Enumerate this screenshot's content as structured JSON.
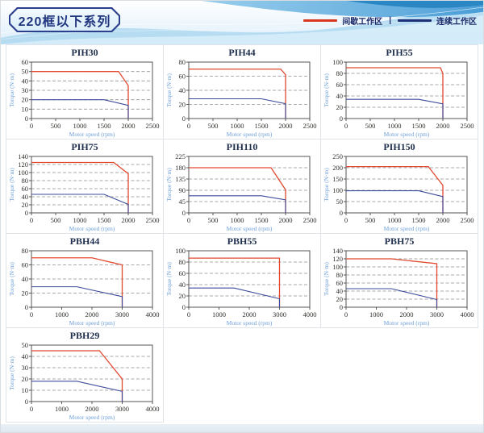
{
  "header": {
    "title": "220框以下系列",
    "legend": {
      "items": [
        {
          "label": "间歇工作区",
          "color": "#d6391f"
        },
        {
          "label": "连续工作区",
          "color": "#1d2f77"
        }
      ],
      "separator": "|"
    }
  },
  "style_colors": {
    "intermittent_line": "#e2492f",
    "continuous_line": "#3d4b9b",
    "axis_label_blue": "#6fa0d8",
    "tick_text": "#33302c",
    "plot_border": "#555555",
    "gridline": "#8f8f8f"
  },
  "chart_data": [
    {
      "type": "line",
      "title": "PIH30",
      "xlabel": "Motor speed (rpm)",
      "ylabel": "Torque (N·m)",
      "xlim": [
        0,
        2500
      ],
      "ylim": [
        0,
        60
      ],
      "xtick_step": 500,
      "ytick_step": 10,
      "grid": "dashed-horizontal",
      "legend_position": "none",
      "series": [
        {
          "name": "间歇工作区",
          "color": "#e2492f",
          "points": [
            [
              0,
              50
            ],
            [
              1800,
              50
            ],
            [
              2000,
              35
            ],
            [
              2000,
              0
            ]
          ]
        },
        {
          "name": "连续工作区",
          "color": "#3d4b9b",
          "points": [
            [
              0,
              20
            ],
            [
              1500,
              20
            ],
            [
              2000,
              14
            ],
            [
              2000,
              0
            ]
          ]
        }
      ]
    },
    {
      "type": "line",
      "title": "PIH44",
      "xlabel": "Motor speed (rpm)",
      "ylabel": "Torque (N·m)",
      "xlim": [
        0,
        2500
      ],
      "ylim": [
        0,
        80
      ],
      "xtick_step": 500,
      "ytick_step": 20,
      "grid": "dashed-horizontal",
      "legend_position": "none",
      "series": [
        {
          "name": "间歇工作区",
          "color": "#e2492f",
          "points": [
            [
              0,
              70
            ],
            [
              1900,
              70
            ],
            [
              2000,
              62
            ],
            [
              2000,
              0
            ]
          ]
        },
        {
          "name": "连续工作区",
          "color": "#3d4b9b",
          "points": [
            [
              0,
              28
            ],
            [
              1500,
              28
            ],
            [
              2000,
              21
            ],
            [
              2000,
              0
            ]
          ]
        }
      ]
    },
    {
      "type": "line",
      "title": "PIH55",
      "xlabel": "Motor speed (rpm)",
      "ylabel": "Torque (N·m)",
      "xlim": [
        0,
        2500
      ],
      "ylim": [
        0,
        100
      ],
      "xtick_step": 500,
      "ytick_step": 20,
      "grid": "dashed-horizontal",
      "legend_position": "none",
      "series": [
        {
          "name": "间歇工作区",
          "color": "#e2492f",
          "points": [
            [
              0,
              90
            ],
            [
              1950,
              90
            ],
            [
              2000,
              80
            ],
            [
              2000,
              0
            ]
          ]
        },
        {
          "name": "连续工作区",
          "color": "#3d4b9b",
          "points": [
            [
              0,
              34
            ],
            [
              1500,
              34
            ],
            [
              2000,
              26
            ],
            [
              2000,
              0
            ]
          ]
        }
      ]
    },
    {
      "type": "line",
      "title": "PIH75",
      "xlabel": "Motor speed (rpm)",
      "ylabel": "Torque (N·m)",
      "xlim": [
        0,
        2500
      ],
      "ylim": [
        0,
        140
      ],
      "xtick_step": 500,
      "ytick_step": 20,
      "grid": "dashed-horizontal",
      "legend_position": "none",
      "series": [
        {
          "name": "间歇工作区",
          "color": "#e2492f",
          "points": [
            [
              0,
              125
            ],
            [
              1700,
              125
            ],
            [
              2000,
              97
            ],
            [
              2000,
              0
            ]
          ]
        },
        {
          "name": "连续工作区",
          "color": "#3d4b9b",
          "points": [
            [
              0,
              46
            ],
            [
              1500,
              46
            ],
            [
              2000,
              21
            ],
            [
              2000,
              0
            ]
          ]
        }
      ]
    },
    {
      "type": "line",
      "title": "PIH110",
      "xlabel": "Motor speed (rpm)",
      "ylabel": "Torque (N·m)",
      "xlim": [
        0,
        2500
      ],
      "ylim": [
        0,
        225
      ],
      "xtick_step": 500,
      "ytick_step": 45,
      "grid": "dashed-horizontal",
      "legend_position": "none",
      "series": [
        {
          "name": "间歇工作区",
          "color": "#e2492f",
          "points": [
            [
              0,
              180
            ],
            [
              1700,
              180
            ],
            [
              2000,
              92
            ],
            [
              2000,
              0
            ]
          ]
        },
        {
          "name": "连续工作区",
          "color": "#3d4b9b",
          "points": [
            [
              0,
              68
            ],
            [
              1500,
              68
            ],
            [
              2000,
              52
            ],
            [
              2000,
              0
            ]
          ]
        }
      ]
    },
    {
      "type": "line",
      "title": "PIH150",
      "xlabel": "Motor speed (rpm)",
      "ylabel": "Torque (N·m)",
      "xlim": [
        0,
        2500
      ],
      "ylim": [
        0,
        250
      ],
      "xtick_step": 500,
      "ytick_step": 50,
      "grid": "dashed-horizontal",
      "legend_position": "none",
      "series": [
        {
          "name": "间歇工作区",
          "color": "#e2492f",
          "points": [
            [
              0,
              205
            ],
            [
              1700,
              205
            ],
            [
              2000,
              122
            ],
            [
              2000,
              0
            ]
          ]
        },
        {
          "name": "连续工作区",
          "color": "#3d4b9b",
          "points": [
            [
              0,
              98
            ],
            [
              1500,
              98
            ],
            [
              2000,
              72
            ],
            [
              2000,
              0
            ]
          ]
        }
      ]
    },
    {
      "type": "line",
      "title": "PBH44",
      "xlabel": "Motor speed (rpm)",
      "ylabel": "Torque (N·m)",
      "xlim": [
        0,
        4000
      ],
      "ylim": [
        0,
        80
      ],
      "xtick_step": 1000,
      "ytick_step": 20,
      "grid": "dashed-horizontal",
      "legend_position": "none",
      "series": [
        {
          "name": "间歇工作区",
          "color": "#e2492f",
          "points": [
            [
              0,
              70
            ],
            [
              2000,
              70
            ],
            [
              3000,
              60
            ],
            [
              3000,
              0
            ]
          ]
        },
        {
          "name": "连续工作区",
          "color": "#3d4b9b",
          "points": [
            [
              0,
              29
            ],
            [
              1500,
              29
            ],
            [
              3000,
              15
            ],
            [
              3000,
              0
            ]
          ]
        }
      ]
    },
    {
      "type": "line",
      "title": "PBH55",
      "xlabel": "Motor speed (rpm)",
      "ylabel": "Torque (N·m)",
      "xlim": [
        0,
        4000
      ],
      "ylim": [
        0,
        100
      ],
      "xtick_step": 1000,
      "ytick_step": 20,
      "grid": "dashed-horizontal",
      "legend_position": "none",
      "series": [
        {
          "name": "间歇工作区",
          "color": "#e2492f",
          "points": [
            [
              0,
              87
            ],
            [
              3000,
              87
            ],
            [
              3000,
              0
            ]
          ]
        },
        {
          "name": "连续工作区",
          "color": "#3d4b9b",
          "points": [
            [
              0,
              34
            ],
            [
              1500,
              34
            ],
            [
              3000,
              15
            ],
            [
              3000,
              0
            ]
          ]
        }
      ]
    },
    {
      "type": "line",
      "title": "PBH75",
      "xlabel": "Motor speed (rpm)",
      "ylabel": "Torque (N·m)",
      "xlim": [
        0,
        4000
      ],
      "ylim": [
        0,
        140
      ],
      "xtick_step": 1000,
      "ytick_step": 20,
      "grid": "dashed-horizontal",
      "legend_position": "none",
      "series": [
        {
          "name": "间歇工作区",
          "color": "#e2492f",
          "points": [
            [
              0,
              120
            ],
            [
              1500,
              120
            ],
            [
              3000,
              108
            ],
            [
              3000,
              0
            ]
          ]
        },
        {
          "name": "连续工作区",
          "color": "#3d4b9b",
          "points": [
            [
              0,
              46
            ],
            [
              1500,
              46
            ],
            [
              3000,
              19
            ],
            [
              3000,
              0
            ]
          ]
        }
      ]
    },
    {
      "type": "line",
      "title": "PBH29",
      "xlabel": "Motor speed (rpm)",
      "ylabel": "Torque (N·m)",
      "xlim": [
        0,
        4000
      ],
      "ylim": [
        0,
        50
      ],
      "xtick_step": 1000,
      "ytick_step": 10,
      "grid": "dashed-horizontal",
      "legend_position": "none",
      "series": [
        {
          "name": "间歇工作区",
          "color": "#e2492f",
          "points": [
            [
              0,
              45
            ],
            [
              2250,
              45
            ],
            [
              3000,
              20
            ],
            [
              3000,
              0
            ]
          ]
        },
        {
          "name": "连续工作区",
          "color": "#3d4b9b",
          "points": [
            [
              0,
              18
            ],
            [
              1500,
              18
            ],
            [
              3000,
              9
            ],
            [
              3000,
              0
            ]
          ]
        }
      ]
    }
  ]
}
